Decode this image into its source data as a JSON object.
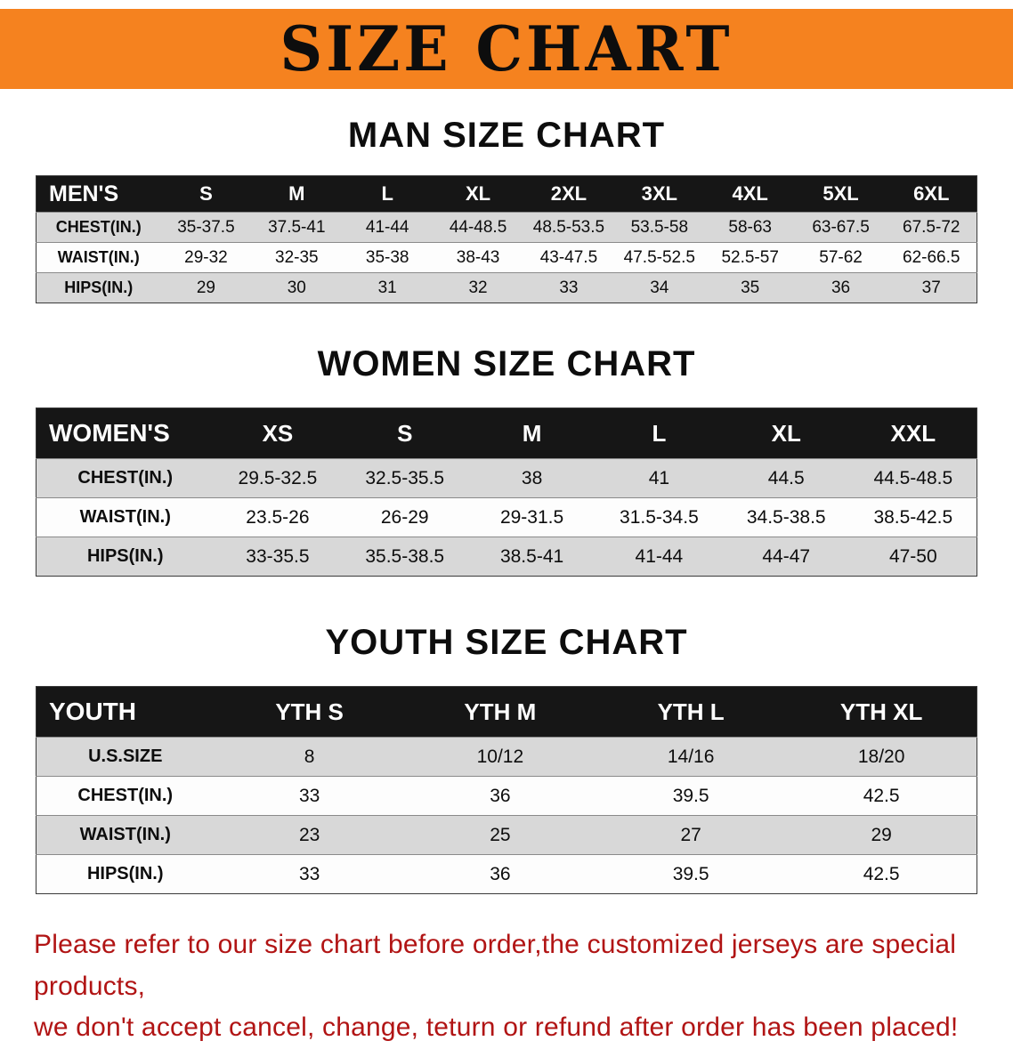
{
  "banner": {
    "title": "SIZE CHART"
  },
  "sections": [
    {
      "id": "men",
      "heading": "MAN SIZE CHART",
      "table": {
        "header": [
          "MEN'S",
          "S",
          "M",
          "L",
          "XL",
          "2XL",
          "3XL",
          "4XL",
          "5XL",
          "6XL"
        ],
        "rows": [
          [
            "CHEST(IN.)",
            "35-37.5",
            "37.5-41",
            "41-44",
            "44-48.5",
            "48.5-53.5",
            "53.5-58",
            "58-63",
            "63-67.5",
            "67.5-72"
          ],
          [
            "WAIST(IN.)",
            "29-32",
            "32-35",
            "35-38",
            "38-43",
            "43-47.5",
            "47.5-52.5",
            "52.5-57",
            "57-62",
            "62-66.5"
          ],
          [
            "HIPS(IN.)",
            "29",
            "30",
            "31",
            "32",
            "33",
            "34",
            "35",
            "36",
            "37"
          ]
        ]
      }
    },
    {
      "id": "women",
      "heading": "WOMEN SIZE CHART",
      "table": {
        "header": [
          "WOMEN'S",
          "XS",
          "S",
          "M",
          "L",
          "XL",
          "XXL"
        ],
        "rows": [
          [
            "CHEST(IN.)",
            "29.5-32.5",
            "32.5-35.5",
            "38",
            "41",
            "44.5",
            "44.5-48.5"
          ],
          [
            "WAIST(IN.)",
            "23.5-26",
            "26-29",
            "29-31.5",
            "31.5-34.5",
            "34.5-38.5",
            "38.5-42.5"
          ],
          [
            "HIPS(IN.)",
            "33-35.5",
            "35.5-38.5",
            "38.5-41",
            "41-44",
            "44-47",
            "47-50"
          ]
        ]
      }
    },
    {
      "id": "youth",
      "heading": "YOUTH SIZE CHART",
      "table": {
        "header": [
          "YOUTH",
          "YTH S",
          "YTH M",
          "YTH L",
          "YTH XL"
        ],
        "rows": [
          [
            "U.S.SIZE",
            "8",
            "10/12",
            "14/16",
            "18/20"
          ],
          [
            "CHEST(IN.)",
            "33",
            "36",
            "39.5",
            "42.5"
          ],
          [
            "WAIST(IN.)",
            "23",
            "25",
            "27",
            "29"
          ],
          [
            "HIPS(IN.)",
            "33",
            "36",
            "39.5",
            "42.5"
          ]
        ]
      }
    }
  ],
  "footer": {
    "line1": "Please refer to our size chart before order,the customized jerseys are special products,",
    "line2": "we don't accept cancel, change, teturn or refund after order has been placed!"
  },
  "colors": {
    "banner-bg": "#f5821f",
    "header-bg": "#161616",
    "stripe": "#d8d8d8",
    "footer-red": "#b11414"
  }
}
